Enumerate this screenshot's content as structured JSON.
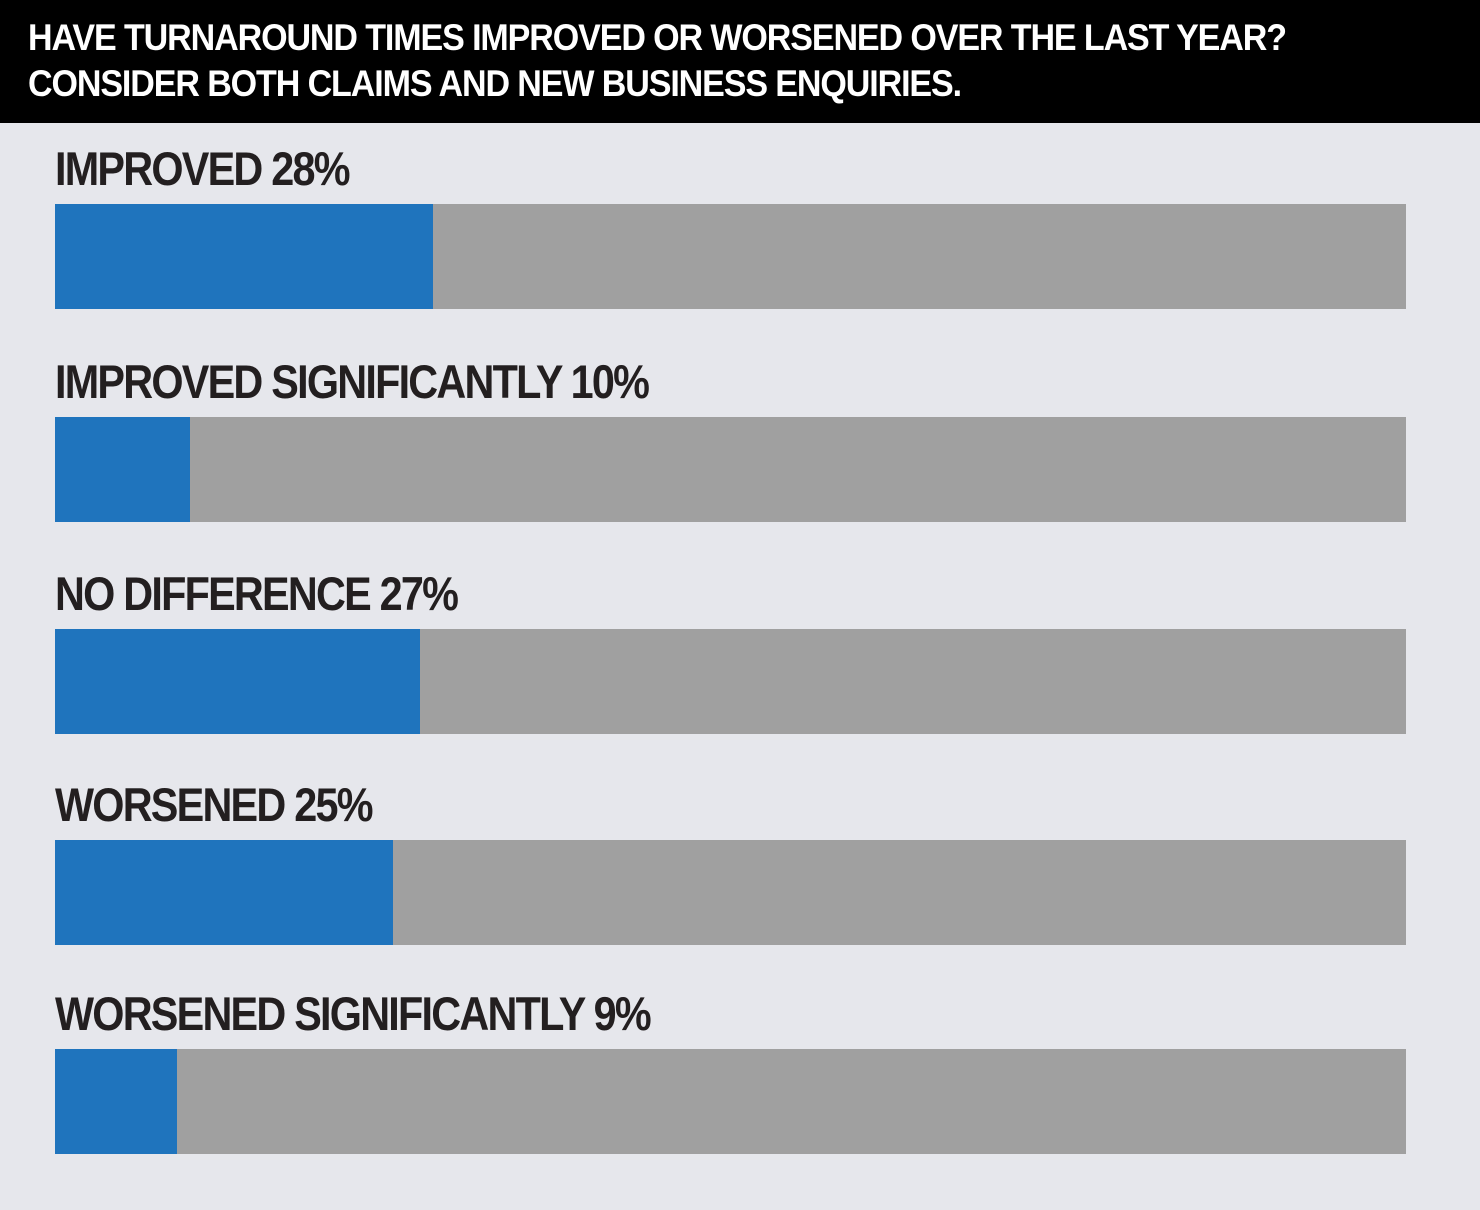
{
  "header": {
    "line1": "HAVE TURNAROUND TIMES IMPROVED OR WORSENED OVER THE LAST YEAR?",
    "line2": "CONSIDER BOTH CLAIMS AND NEW BUSINESS ENQUIRIES."
  },
  "colors": {
    "header_bg": "#000000",
    "background": "#e6e7ec",
    "bar_fill": "#1f74bd",
    "bar_track": "#a0a0a0",
    "label_text": "#231f20"
  },
  "chart_data": {
    "type": "bar",
    "orientation": "horizontal",
    "title": "HAVE TURNAROUND TIMES IMPROVED OR WORSENED OVER THE LAST YEAR? CONSIDER BOTH CLAIMS AND NEW BUSINESS ENQUIRIES.",
    "categories": [
      "IMPROVED",
      "IMPROVED SIGNIFICANTLY",
      "NO DIFFERENCE",
      "WORSENED",
      "WORSENED SIGNIFICANTLY"
    ],
    "values": [
      28,
      10,
      27,
      25,
      9
    ],
    "labels": [
      "IMPROVED 28%",
      "IMPROVED SIGNIFICANTLY 10%",
      "NO DIFFERENCE 27%",
      "WORSENED 25%",
      "WORSENED SIGNIFICANTLY 9%"
    ],
    "unit": "%",
    "xlim": [
      0,
      100
    ],
    "grid": false,
    "legend": "none"
  }
}
